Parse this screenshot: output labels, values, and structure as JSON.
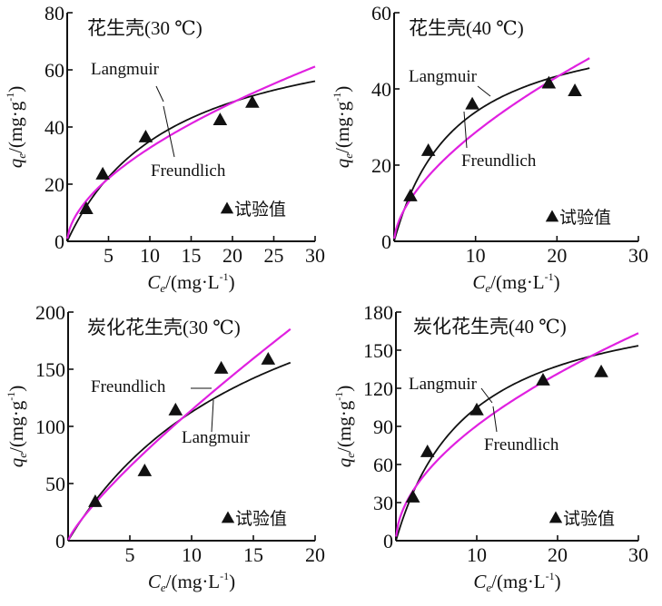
{
  "colors": {
    "langmuir": "#111111",
    "freundlich": "#e020e0",
    "points": "#111111",
    "axis": "#111111"
  },
  "chart_data": [
    {
      "type": "scatter",
      "title": "花生壳(30 ℃)",
      "xlabel_main": "C",
      "xlabel_sub": "e",
      "xlabel_unit": "/(mg·L",
      "xlabel_exp": "-1",
      "xlabel_close": ")",
      "ylabel_main": "q",
      "ylabel_sub": "e",
      "ylabel_unit": "/(mg·g",
      "ylabel_exp": "-1",
      "ylabel_close": ")",
      "xlim": [
        0,
        30
      ],
      "ylim": [
        0,
        80
      ],
      "xticks": [
        5,
        10,
        15,
        20,
        25,
        30
      ],
      "xtick_labels": [
        "5",
        "10",
        "15",
        "20",
        "25",
        "30"
      ],
      "yticks": [
        0,
        20,
        40,
        60,
        80
      ],
      "ytick_labels": [
        "0",
        "20",
        "40",
        "60",
        "80"
      ],
      "points": {
        "name": "试验值",
        "x": [
          2.3,
          4.3,
          9.5,
          18.5,
          22.4
        ],
        "y": [
          11.4,
          23.5,
          36.5,
          42.5,
          48.6
        ]
      },
      "series": [
        {
          "name": "Langmuir",
          "model": "langmuir",
          "qm": 80,
          "k": 0.078,
          "xmax": 30
        },
        {
          "name": "Freundlich",
          "model": "freundlich",
          "kf": 8.8,
          "n_inv": 0.57,
          "xmax": 30
        }
      ]
    },
    {
      "type": "scatter",
      "title": "花生壳(40 ℃)",
      "xlabel_main": "C",
      "xlabel_sub": "e",
      "xlabel_unit": "/(mg·L",
      "xlabel_exp": "-1",
      "xlabel_close": ")",
      "ylabel_main": "q",
      "ylabel_sub": "e",
      "ylabel_unit": "/(mg·g",
      "ylabel_exp": "-1",
      "ylabel_close": ")",
      "xlim": [
        0,
        30
      ],
      "ylim": [
        0,
        60
      ],
      "xticks": [
        10,
        20,
        30
      ],
      "xtick_labels": [
        "10",
        "20",
        "30"
      ],
      "yticks": [
        0,
        20,
        40,
        60
      ],
      "ytick_labels": [
        "0",
        "20",
        "40",
        "60"
      ],
      "points": {
        "name": "试验值",
        "x": [
          2.0,
          4.2,
          9.6,
          19.0,
          22.2
        ],
        "y": [
          11.9,
          23.8,
          36.0,
          41.5,
          39.5
        ]
      },
      "series": [
        {
          "name": "Langmuir",
          "model": "langmuir",
          "qm": 60,
          "k": 0.13,
          "xmax": 24
        },
        {
          "name": "Freundlich",
          "model": "freundlich",
          "kf": 7.3,
          "n_inv": 0.593,
          "xmax": 24
        }
      ]
    },
    {
      "type": "scatter",
      "title": "炭化花生壳(30 ℃)",
      "xlabel_main": "C",
      "xlabel_sub": "e",
      "xlabel_unit": "/(mg·L",
      "xlabel_exp": "-1",
      "xlabel_close": ")",
      "ylabel_main": "q",
      "ylabel_sub": "e",
      "ylabel_unit": "/(mg·g",
      "ylabel_exp": "-1",
      "ylabel_close": ")",
      "xlim": [
        0,
        20
      ],
      "ylim": [
        0,
        200
      ],
      "xticks": [
        5,
        10,
        15,
        20
      ],
      "xtick_labels": [
        "5",
        "10",
        "15",
        "20"
      ],
      "yticks": [
        0,
        50,
        100,
        150,
        200
      ],
      "ytick_labels": [
        "0",
        "50",
        "100",
        "150",
        "200"
      ],
      "points": {
        "name": "试验值",
        "x": [
          2.2,
          6.2,
          8.7,
          12.4,
          16.2
        ],
        "y": [
          34.1,
          61.1,
          114.3,
          150.8,
          158.7
        ]
      },
      "series": [
        {
          "name": "Langmuir",
          "model": "langmuir",
          "qm": 300,
          "k": 0.06,
          "xmax": 18
        },
        {
          "name": "Freundlich",
          "model": "freundlich",
          "kf": 17.3,
          "n_inv": 0.82,
          "xmax": 18
        }
      ]
    },
    {
      "type": "scatter",
      "title": "炭化花生壳(40 ℃)",
      "xlabel_main": "C",
      "xlabel_sub": "e",
      "xlabel_unit": "/(mg·L",
      "xlabel_exp": "-1",
      "xlabel_close": ")",
      "ylabel_main": "q",
      "ylabel_sub": "e",
      "ylabel_unit": "/(mg·g",
      "ylabel_exp": "-1",
      "ylabel_close": ")",
      "xlim": [
        0,
        30
      ],
      "ylim": [
        0,
        180
      ],
      "xticks": [
        10,
        20,
        30
      ],
      "xtick_labels": [
        "10",
        "20",
        "30"
      ],
      "yticks": [
        0,
        30,
        60,
        90,
        120,
        150,
        180
      ],
      "ytick_labels": [
        "0",
        "30",
        "60",
        "90",
        "120",
        "150",
        "180"
      ],
      "points": {
        "name": "试验值",
        "x": [
          2.1,
          3.9,
          10.0,
          18.2,
          25.4
        ],
        "y": [
          34.3,
          70.0,
          102.9,
          126.4,
          132.9
        ]
      },
      "series": [
        {
          "name": "Langmuir",
          "model": "langmuir",
          "qm": 200,
          "k": 0.11,
          "xmax": 30
        },
        {
          "name": "Freundlich",
          "model": "freundlich",
          "kf": 26.3,
          "n_inv": 0.537,
          "xmax": 30
        }
      ]
    }
  ]
}
